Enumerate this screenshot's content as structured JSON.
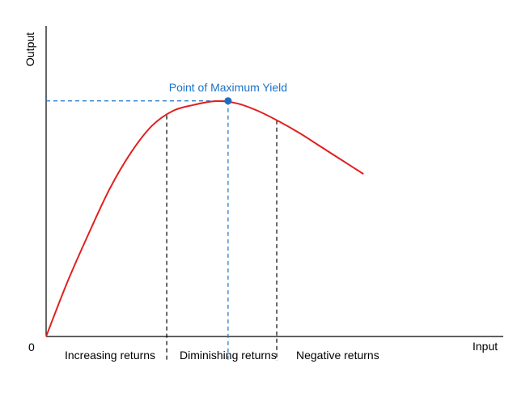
{
  "chart_data": {
    "type": "line",
    "title": "",
    "xlabel": "Input",
    "ylabel": "Output",
    "origin_label": "0",
    "xlim": [
      0,
      10
    ],
    "ylim": [
      0,
      10
    ],
    "grid": false,
    "series": [
      {
        "x": [
          0,
          0.5,
          1,
          1.5,
          2,
          2.5,
          3,
          3.5,
          4,
          4.5,
          5,
          5.5,
          6,
          6.5,
          7,
          7.5
        ],
        "y": [
          0,
          1.8,
          3.4,
          4.9,
          6.1,
          7.0,
          7.5,
          7.7,
          7.82,
          7.75,
          7.5,
          7.15,
          6.75,
          6.3,
          5.85,
          5.4
        ],
        "color": "#e0201f"
      }
    ],
    "vertical_markers": [
      {
        "x": 2.85,
        "color": "#000000"
      },
      {
        "x": 4.3,
        "color": "#1a73c8"
      },
      {
        "x": 5.45,
        "color": "#000000"
      }
    ],
    "max_point": {
      "x": 4.3,
      "y": 7.83,
      "color": "#1a6fc4"
    },
    "annotation": {
      "text": "Point of Maximum Yield",
      "color": "#1a73c8"
    },
    "regions": [
      "Increasing returns",
      "Diminishing returns",
      "Negative returns"
    ]
  }
}
